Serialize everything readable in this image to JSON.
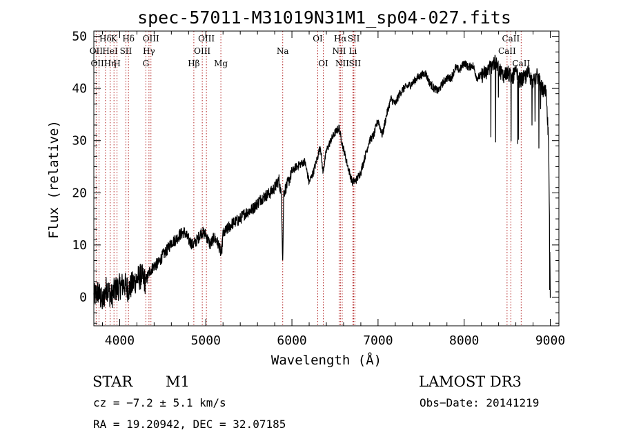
{
  "chart_data": {
    "type": "line",
    "title": "spec-57011-M31019N31M1_sp04-027.fits",
    "xlabel": "Wavelength (Å)",
    "ylabel": "Flux (relative)",
    "xlim": [
      3700,
      9100
    ],
    "ylim": [
      -5.5,
      51
    ],
    "xticks": [
      4000,
      5000,
      6000,
      7000,
      8000,
      9000
    ],
    "yticks": [
      0,
      10,
      20,
      30,
      40,
      50
    ],
    "series": [
      {
        "name": "flux",
        "color": "#000000",
        "x": [
          3700,
          3750,
          3800,
          3850,
          3900,
          3950,
          4000,
          4050,
          4100,
          4150,
          4200,
          4250,
          4300,
          4350,
          4400,
          4450,
          4500,
          4550,
          4600,
          4650,
          4700,
          4750,
          4800,
          4850,
          4900,
          4950,
          5000,
          5050,
          5100,
          5150,
          5180,
          5200,
          5250,
          5300,
          5350,
          5400,
          5450,
          5500,
          5550,
          5600,
          5650,
          5700,
          5750,
          5800,
          5850,
          5880,
          5893,
          5905,
          5930,
          5970,
          6000,
          6050,
          6100,
          6150,
          6200,
          6250,
          6300,
          6330,
          6360,
          6400,
          6450,
          6500,
          6550,
          6563,
          6590,
          6620,
          6650,
          6700,
          6750,
          6800,
          6850,
          6900,
          6950,
          7000,
          7050,
          7100,
          7150,
          7200,
          7250,
          7300,
          7350,
          7400,
          7450,
          7500,
          7550,
          7600,
          7650,
          7700,
          7750,
          7800,
          7850,
          7900,
          7950,
          8000,
          8050,
          8100,
          8150,
          8200,
          8250,
          8300,
          8350,
          8400,
          8450,
          8500,
          8550,
          8600,
          8650,
          8700,
          8750,
          8800,
          8850,
          8900,
          8950,
          8980,
          9000
        ],
        "y": [
          0,
          1,
          -1,
          2,
          0,
          1.5,
          2,
          2.5,
          1.5,
          2.5,
          3.5,
          4,
          3,
          5,
          6,
          6.5,
          8,
          9,
          10.5,
          11,
          12,
          12.5,
          11,
          10,
          11,
          12.5,
          12,
          10,
          11.5,
          10,
          8,
          12,
          13,
          14,
          14.5,
          15,
          16,
          16.5,
          17,
          18,
          19,
          19.5,
          20,
          21,
          22.5,
          19,
          6.5,
          20,
          21,
          22.5,
          24,
          25,
          25.5,
          26,
          22,
          24,
          27,
          29,
          24,
          28,
          30,
          31.5,
          32.5,
          31,
          29,
          27,
          25,
          22,
          22.5,
          24,
          27,
          30,
          31,
          34,
          31,
          35,
          38,
          37,
          39,
          40,
          40.5,
          41,
          42,
          42.5,
          43,
          41,
          40,
          39.5,
          41,
          42,
          42,
          44,
          43.5,
          45,
          44,
          44.5,
          42,
          42.5,
          43,
          44,
          45,
          44,
          42.5,
          43,
          42,
          43,
          41.5,
          42,
          43,
          41,
          42.5,
          40,
          39,
          30,
          -0.5
        ]
      }
    ],
    "spectral_lines": [
      {
        "label": "Hδ",
        "wave": 3835,
        "row": 0
      },
      {
        "label": "OII",
        "wave": 3727,
        "row": 1
      },
      {
        "label": "OIII",
        "wave": 3760,
        "row": 2
      },
      {
        "label": "HeI",
        "wave": 3889,
        "row": 1
      },
      {
        "label": "Hη",
        "wave": 3889,
        "row": 2
      },
      {
        "label": "K",
        "wave": 3934,
        "row": 0
      },
      {
        "label": "H",
        "wave": 3969,
        "row": 2
      },
      {
        "label": "SII",
        "wave": 4072,
        "row": 1
      },
      {
        "label": "Hδ",
        "wave": 4102,
        "row": 0
      },
      {
        "label": "G",
        "wave": 4304,
        "row": 2
      },
      {
        "label": "OIII",
        "wave": 4363,
        "row": 0
      },
      {
        "label": "Hγ",
        "wave": 4340,
        "row": 1
      },
      {
        "label": "Hβ",
        "wave": 4861,
        "row": 2
      },
      {
        "label": "OIII",
        "wave": 5007,
        "row": 0
      },
      {
        "label": "OIII",
        "wave": 4959,
        "row": 1
      },
      {
        "label": "Mg",
        "wave": 5175,
        "row": 2
      },
      {
        "label": "Na",
        "wave": 5893,
        "row": 1
      },
      {
        "label": "OI",
        "wave": 6300,
        "row": 0
      },
      {
        "label": "OI",
        "wave": 6364,
        "row": 2
      },
      {
        "label": "Hα",
        "wave": 6563,
        "row": 0
      },
      {
        "label": "NII",
        "wave": 6548,
        "row": 1
      },
      {
        "label": "NII",
        "wave": 6584,
        "row": 2
      },
      {
        "label": "SII",
        "wave": 6717,
        "row": 0
      },
      {
        "label": "Li",
        "wave": 6708,
        "row": 1
      },
      {
        "label": "SII",
        "wave": 6731,
        "row": 2
      },
      {
        "label": "CaII",
        "wave": 8542,
        "row": 0
      },
      {
        "label": "CaII",
        "wave": 8498,
        "row": 1
      },
      {
        "label": "CaII",
        "wave": 8662,
        "row": 2
      }
    ],
    "line_marker_color": "#b22222"
  },
  "info": {
    "object_class": "STAR",
    "subclass": "M1",
    "survey": "LAMOST DR3",
    "cz": "cz = −7.2 ± 5.1 km/s",
    "obs_date": "Obs−Date: 20141219",
    "coords": "RA =  19.20942, DEC =  32.07185"
  }
}
